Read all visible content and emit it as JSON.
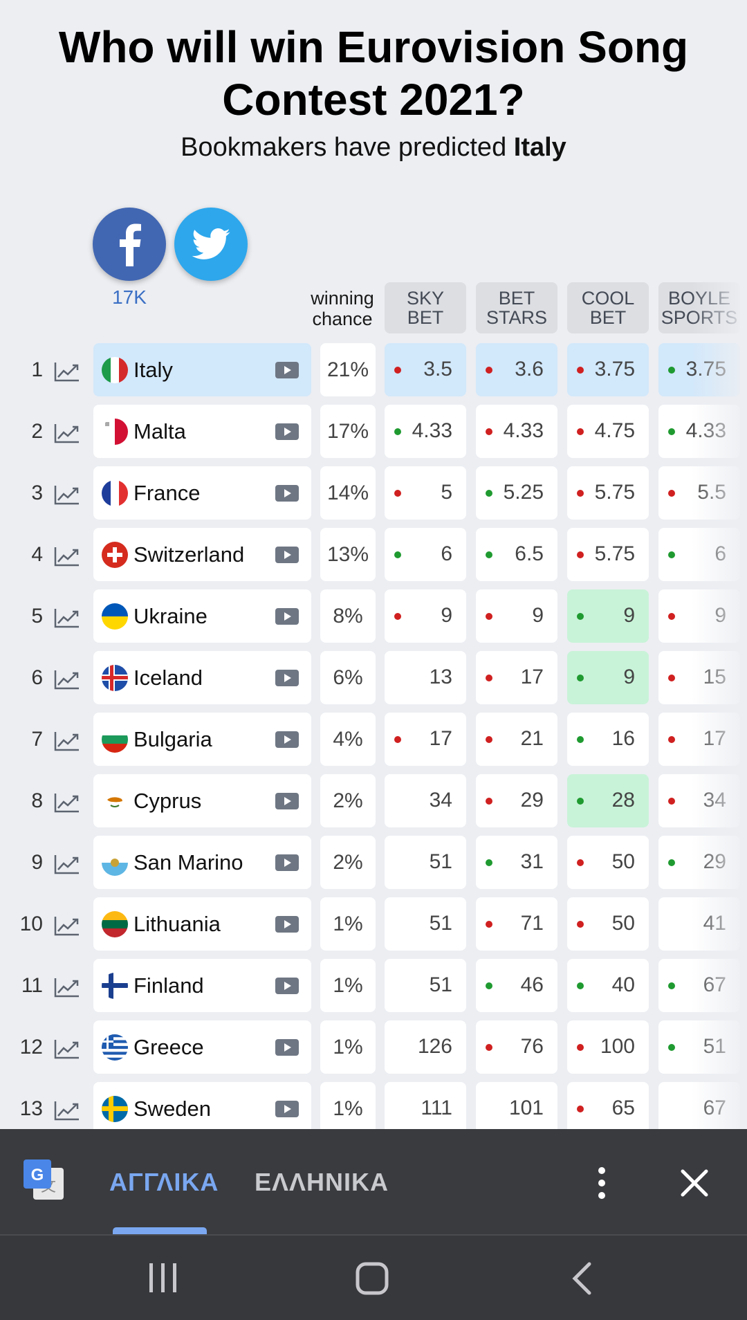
{
  "header": {
    "title": "Who will win Eurovision Song Contest 2021?",
    "subtitle_prefix": "Bookmakers have predicted ",
    "subtitle_bold": "Italy"
  },
  "social": {
    "facebook_count": "17K"
  },
  "columns": {
    "chance_line1": "winning",
    "chance_line2": "chance",
    "bookmakers": [
      {
        "line1": "SKY",
        "line2": "BET"
      },
      {
        "line1": "BET",
        "line2": "STARS"
      },
      {
        "line1": "COOL",
        "line2": "BET"
      },
      {
        "line1": "BOYLE",
        "line2": "SPORTS"
      }
    ]
  },
  "rows": [
    {
      "rank": "1",
      "country": "Italy",
      "flag": "italy",
      "chance": "21%",
      "highlight": true,
      "odds": [
        {
          "v": "3.5",
          "d": "up"
        },
        {
          "v": "3.6",
          "d": "up"
        },
        {
          "v": "3.75",
          "d": "up"
        },
        {
          "v": "3.75",
          "d": "down"
        }
      ]
    },
    {
      "rank": "2",
      "country": "Malta",
      "flag": "malta",
      "chance": "17%",
      "odds": [
        {
          "v": "4.33",
          "d": "down"
        },
        {
          "v": "4.33",
          "d": "up"
        },
        {
          "v": "4.75",
          "d": "up"
        },
        {
          "v": "4.33",
          "d": "down"
        }
      ]
    },
    {
      "rank": "3",
      "country": "France",
      "flag": "france",
      "chance": "14%",
      "odds": [
        {
          "v": "5",
          "d": "up"
        },
        {
          "v": "5.25",
          "d": "down"
        },
        {
          "v": "5.75",
          "d": "up"
        },
        {
          "v": "5.5",
          "d": "up"
        }
      ]
    },
    {
      "rank": "4",
      "country": "Switzerland",
      "flag": "switzerland",
      "chance": "13%",
      "odds": [
        {
          "v": "6",
          "d": "down"
        },
        {
          "v": "6.5",
          "d": "down"
        },
        {
          "v": "5.75",
          "d": "up"
        },
        {
          "v": "6",
          "d": "down"
        }
      ]
    },
    {
      "rank": "5",
      "country": "Ukraine",
      "flag": "ukraine",
      "chance": "8%",
      "odds": [
        {
          "v": "9",
          "d": "up"
        },
        {
          "v": "9",
          "d": "up"
        },
        {
          "v": "9",
          "d": "down",
          "best": true
        },
        {
          "v": "9",
          "d": "up"
        }
      ]
    },
    {
      "rank": "6",
      "country": "Iceland",
      "flag": "iceland",
      "chance": "6%",
      "odds": [
        {
          "v": "13",
          "d": ""
        },
        {
          "v": "17",
          "d": "up"
        },
        {
          "v": "9",
          "d": "down",
          "best": true
        },
        {
          "v": "15",
          "d": "up"
        }
      ]
    },
    {
      "rank": "7",
      "country": "Bulgaria",
      "flag": "bulgaria",
      "chance": "4%",
      "odds": [
        {
          "v": "17",
          "d": "up"
        },
        {
          "v": "21",
          "d": "up"
        },
        {
          "v": "16",
          "d": "down"
        },
        {
          "v": "17",
          "d": "up"
        }
      ]
    },
    {
      "rank": "8",
      "country": "Cyprus",
      "flag": "cyprus",
      "chance": "2%",
      "odds": [
        {
          "v": "34",
          "d": ""
        },
        {
          "v": "29",
          "d": "up"
        },
        {
          "v": "28",
          "d": "down",
          "best": true
        },
        {
          "v": "34",
          "d": "up"
        }
      ]
    },
    {
      "rank": "9",
      "country": "San Marino",
      "flag": "sanmarino",
      "chance": "2%",
      "odds": [
        {
          "v": "51",
          "d": ""
        },
        {
          "v": "31",
          "d": "down"
        },
        {
          "v": "50",
          "d": "up"
        },
        {
          "v": "29",
          "d": "down"
        }
      ]
    },
    {
      "rank": "10",
      "country": "Lithuania",
      "flag": "lithuania",
      "chance": "1%",
      "odds": [
        {
          "v": "51",
          "d": ""
        },
        {
          "v": "71",
          "d": "up"
        },
        {
          "v": "50",
          "d": "up"
        },
        {
          "v": "41",
          "d": ""
        }
      ]
    },
    {
      "rank": "11",
      "country": "Finland",
      "flag": "finland",
      "chance": "1%",
      "odds": [
        {
          "v": "51",
          "d": ""
        },
        {
          "v": "46",
          "d": "down"
        },
        {
          "v": "40",
          "d": "down"
        },
        {
          "v": "67",
          "d": "down"
        }
      ]
    },
    {
      "rank": "12",
      "country": "Greece",
      "flag": "greece",
      "chance": "1%",
      "odds": [
        {
          "v": "126",
          "d": ""
        },
        {
          "v": "76",
          "d": "up"
        },
        {
          "v": "100",
          "d": "up"
        },
        {
          "v": "51",
          "d": "down"
        }
      ]
    },
    {
      "rank": "13",
      "country": "Sweden",
      "flag": "sweden",
      "chance": "1%",
      "odds": [
        {
          "v": "111",
          "d": ""
        },
        {
          "v": "101",
          "d": ""
        },
        {
          "v": "65",
          "d": "up"
        },
        {
          "v": "67",
          "d": ""
        }
      ]
    }
  ],
  "translate_bar": {
    "active_lang": "ΑΓΓΛΙΚΑ",
    "inactive_lang": "ΕΛΛΗΝΙΚΑ",
    "icons": [
      "google-translate-icon",
      "more-vert-icon",
      "close-icon"
    ]
  },
  "navbar": {
    "icons": [
      "recent-apps-icon",
      "home-icon",
      "back-icon"
    ]
  },
  "colors": {
    "background": "#eceef2",
    "highlight": "#d2e8fb",
    "best_odds": "#c8f3d8",
    "dot_up": "#d02020",
    "dot_down": "#1f9a30",
    "facebook": "#4267b2",
    "twitter": "#2ea7ec",
    "translate_accent": "#7aa7f0"
  }
}
